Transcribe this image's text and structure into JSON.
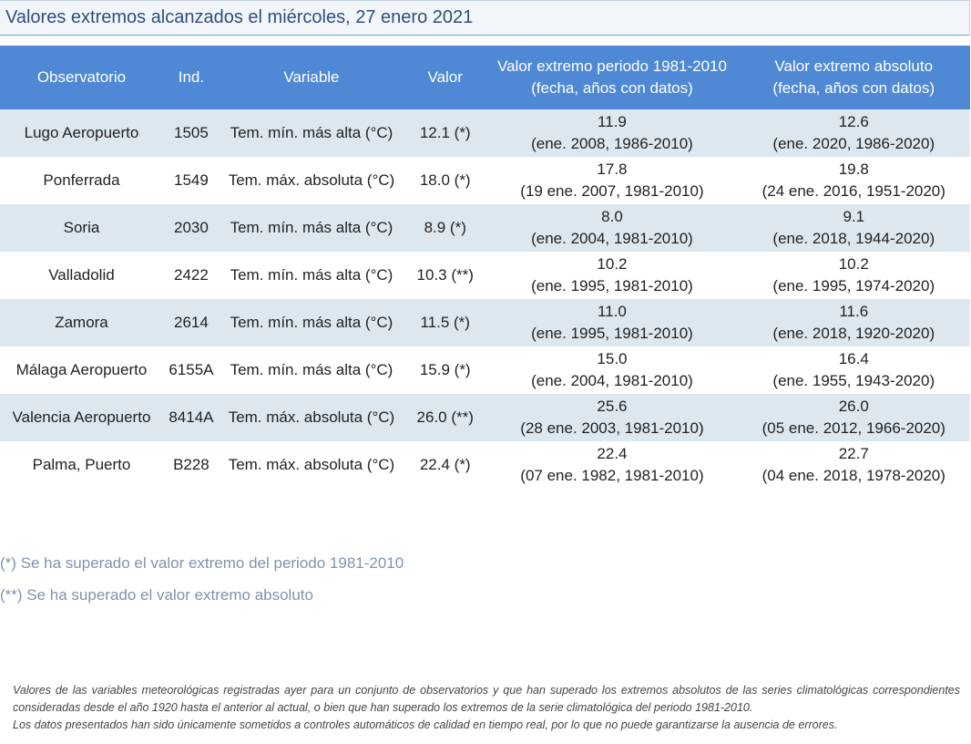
{
  "title": "Valores extremos alcanzados el miércoles, 27 enero 2021",
  "headers": {
    "observatorio": "Observatorio",
    "ind": "Ind.",
    "variable": "Variable",
    "valor": "Valor",
    "periodo_l1": "Valor extremo periodo 1981-2010",
    "periodo_l2": "(fecha, años con datos)",
    "absoluto_l1": "Valor extremo absoluto",
    "absoluto_l2": "(fecha, años con datos)"
  },
  "rows": [
    {
      "obs": "Lugo Aeropuerto",
      "ind": "1505",
      "var": "Tem. mín. más alta (°C)",
      "val": "12.1 (*)",
      "p_val": "11.9",
      "p_info": "(ene. 2008, 1986-2010)",
      "a_val": "12.6",
      "a_info": "(ene. 2020, 1986-2020)"
    },
    {
      "obs": "Ponferrada",
      "ind": "1549",
      "var": "Tem. máx. absoluta (°C)",
      "val": "18.0 (*)",
      "p_val": "17.8",
      "p_info": "(19 ene. 2007, 1981-2010)",
      "a_val": "19.8",
      "a_info": "(24 ene. 2016, 1951-2020)"
    },
    {
      "obs": "Soria",
      "ind": "2030",
      "var": "Tem. mín. más alta (°C)",
      "val": "8.9 (*)",
      "p_val": "8.0",
      "p_info": "(ene. 2004, 1981-2010)",
      "a_val": "9.1",
      "a_info": "(ene. 2018, 1944-2020)"
    },
    {
      "obs": "Valladolid",
      "ind": "2422",
      "var": "Tem. mín. más alta (°C)",
      "val": "10.3 (**)",
      "p_val": "10.2",
      "p_info": "(ene. 1995, 1981-2010)",
      "a_val": "10.2",
      "a_info": "(ene. 1995, 1974-2020)"
    },
    {
      "obs": "Zamora",
      "ind": "2614",
      "var": "Tem. mín. más alta (°C)",
      "val": "11.5 (*)",
      "p_val": "11.0",
      "p_info": "(ene. 1995, 1981-2010)",
      "a_val": "11.6",
      "a_info": "(ene. 2018, 1920-2020)"
    },
    {
      "obs": "Málaga Aeropuerto",
      "ind": "6155A",
      "var": "Tem. mín. más alta (°C)",
      "val": "15.9 (*)",
      "p_val": "15.0",
      "p_info": "(ene. 2004, 1981-2010)",
      "a_val": "16.4",
      "a_info": "(ene. 1955, 1943-2020)"
    },
    {
      "obs": "Valencia Aeropuerto",
      "ind": "8414A",
      "var": "Tem. máx. absoluta (°C)",
      "val": "26.0 (**)",
      "p_val": "25.6",
      "p_info": "(28 ene. 2003, 1981-2010)",
      "a_val": "26.0",
      "a_info": "(05 ene. 2012, 1966-2020)"
    },
    {
      "obs": "Palma, Puerto",
      "ind": "B228",
      "var": "Tem. máx. absoluta (°C)",
      "val": "22.4 (*)",
      "p_val": "22.4",
      "p_info": "(07 ene. 1982, 1981-2010)",
      "a_val": "22.7",
      "a_info": "(04 ene. 2018, 1978-2020)"
    }
  ],
  "notes": {
    "single": "(*) Se ha superado el valor extremo del periodo 1981-2010",
    "double": "(**) Se ha superado el valor extremo absoluto"
  },
  "footnote": {
    "line1": "Valores de las variables meteorológicas registradas ayer para un conjunto de observatorios y que han superado los extremos absolutos de las series climatológicas correspondientes consideradas desde el año 1920 hasta el anterior al actual, o bien que han superado los extremos de la serie climatológica del periodo 1981-2010.",
    "line2": "Los datos presentados han sido únicamente sometidos a controles automáticos de calidad en tiempo real, por lo que no puede garantizarse la ausencia de errores."
  },
  "colors": {
    "header_bg": "#4f89d5",
    "row_alt_bg": "#dde7ef",
    "title_text": "#2e4f7c",
    "notes_text": "#7f93ad"
  }
}
